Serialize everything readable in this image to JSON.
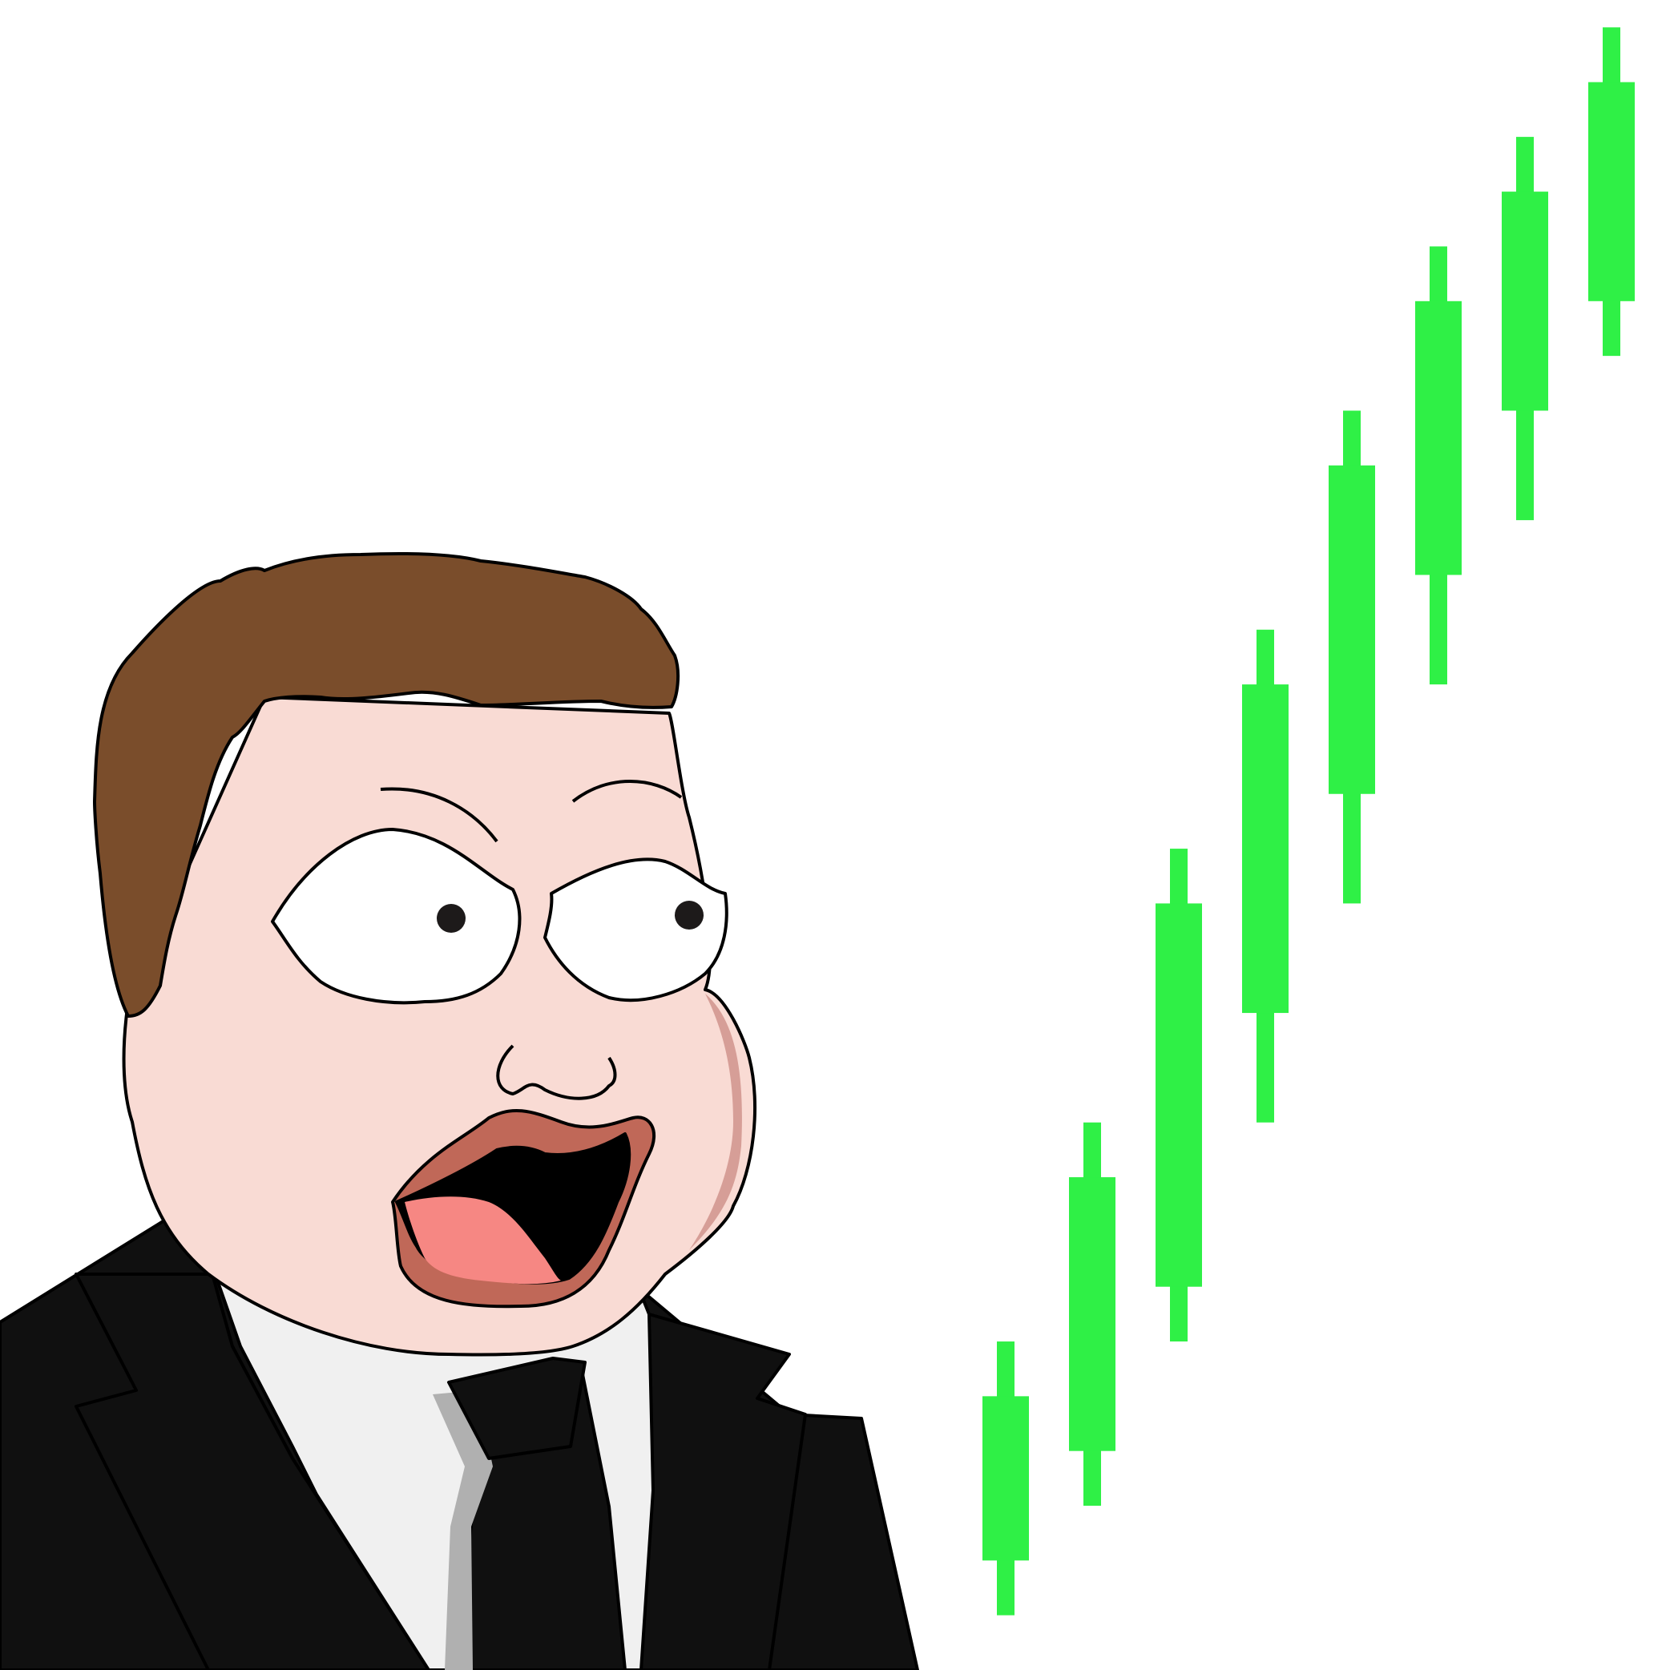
{
  "colors": {
    "background": "#ffffff",
    "candle": "#2ff046",
    "hair": "#7a4d2b",
    "skin": "#f9dbd4",
    "skin_shadow": "#d69e97",
    "suit": "#101010",
    "shirt": "#f0f0f0",
    "tie_shadow": "#b0b0b0",
    "lips": "#c06858",
    "tongue": "#f68783",
    "outline": "#000000"
  },
  "candles": [
    {
      "open": 1,
      "close": 4,
      "low": 0,
      "high": 5
    },
    {
      "open": 3,
      "close": 8,
      "low": 2,
      "high": 9
    },
    {
      "open": 6,
      "close": 13,
      "low": 5,
      "high": 14
    },
    {
      "open": 11,
      "close": 17,
      "low": 9,
      "high": 18
    },
    {
      "open": 15,
      "close": 21,
      "low": 13,
      "high": 22
    },
    {
      "open": 19,
      "close": 24,
      "low": 17,
      "high": 25
    },
    {
      "open": 22,
      "close": 26,
      "low": 20,
      "high": 27
    },
    {
      "open": 24,
      "close": 28,
      "low": 23,
      "high": 29
    }
  ]
}
